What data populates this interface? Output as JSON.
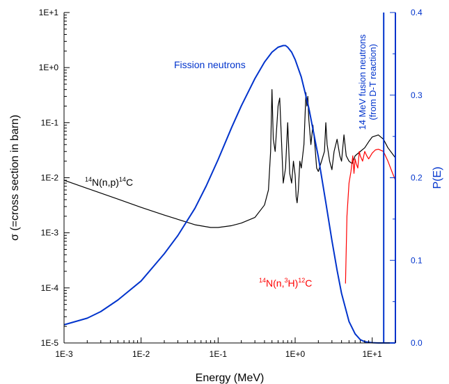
{
  "chart_data": {
    "type": "line",
    "xlabel": "Energy (MeV)",
    "ylabel_left": "σ (=cross section in barn)",
    "ylabel_right": "P(E)",
    "x_scale": "log",
    "xlim": [
      0.001,
      20
    ],
    "y_left_scale": "log",
    "y_left_lim": [
      1e-05,
      10
    ],
    "y_right_lim": [
      0,
      0.4
    ],
    "x_ticks": [
      {
        "value": 0.001,
        "label": "1E-3"
      },
      {
        "value": 0.01,
        "label": "1E-2"
      },
      {
        "value": 0.1,
        "label": "1E-1"
      },
      {
        "value": 1,
        "label": "1E+0"
      },
      {
        "value": 10,
        "label": "1E+1"
      }
    ],
    "y_left_ticks": [
      {
        "value": 10,
        "label": "1E+1"
      },
      {
        "value": 1,
        "label": "1E+0"
      },
      {
        "value": 0.1,
        "label": "1E-1"
      },
      {
        "value": 0.01,
        "label": "1E-2"
      },
      {
        "value": 0.001,
        "label": "1E-3"
      },
      {
        "value": 0.0001,
        "label": "1E-4"
      },
      {
        "value": 1e-05,
        "label": "1E-5"
      }
    ],
    "y_right_ticks": [
      {
        "value": 0.4,
        "label": "0.4"
      },
      {
        "value": 0.3,
        "label": "0.3"
      },
      {
        "value": 0.2,
        "label": "0.2"
      },
      {
        "value": 0.1,
        "label": "0.1"
      },
      {
        "value": 0.0,
        "label": "0.0"
      }
    ],
    "series": [
      {
        "name": "14N(n,p)14C",
        "axis": "left",
        "color": "#000000",
        "x": [
          0.001,
          0.002,
          0.005,
          0.01,
          0.02,
          0.05,
          0.08,
          0.1,
          0.15,
          0.2,
          0.3,
          0.4,
          0.45,
          0.48,
          0.5,
          0.52,
          0.55,
          0.6,
          0.63,
          0.66,
          0.7,
          0.75,
          0.8,
          0.85,
          0.9,
          0.95,
          1.0,
          1.03,
          1.06,
          1.1,
          1.15,
          1.2,
          1.3,
          1.38,
          1.42,
          1.46,
          1.5,
          1.6,
          1.7,
          1.8,
          1.9,
          2.0,
          2.2,
          2.4,
          2.5,
          2.6,
          2.8,
          3.0,
          3.2,
          3.5,
          3.8,
          4.0,
          4.3,
          4.6,
          5.0,
          5.5,
          6.0,
          7.0,
          8.0,
          9.0,
          10.0,
          12.0,
          14.0,
          16.0,
          20.0
        ],
        "y": [
          0.009,
          0.0064,
          0.0041,
          0.0029,
          0.0021,
          0.0014,
          0.00125,
          0.00125,
          0.00135,
          0.0015,
          0.0019,
          0.0032,
          0.006,
          0.03,
          0.4,
          0.05,
          0.03,
          0.2,
          0.28,
          0.06,
          0.008,
          0.015,
          0.1,
          0.012,
          0.008,
          0.02,
          0.011,
          0.0045,
          0.0035,
          0.006,
          0.02,
          0.015,
          0.04,
          0.35,
          0.2,
          0.3,
          0.12,
          0.04,
          0.09,
          0.04,
          0.015,
          0.013,
          0.02,
          0.03,
          0.1,
          0.04,
          0.02,
          0.014,
          0.03,
          0.05,
          0.025,
          0.02,
          0.06,
          0.025,
          0.02,
          0.018,
          0.025,
          0.03,
          0.035,
          0.045,
          0.055,
          0.06,
          0.05,
          0.035,
          0.023
        ]
      },
      {
        "name": "14N(n,3H)12C",
        "axis": "left",
        "color": "#ff0000",
        "x": [
          4.5,
          4.7,
          5.0,
          5.3,
          5.6,
          5.8,
          6.0,
          6.2,
          6.5,
          6.8,
          7.0,
          7.5,
          8.0,
          8.5,
          9.0,
          10.0,
          11.0,
          12.0,
          14.0,
          16.0,
          18.0,
          20.0
        ],
        "y": [
          0.00012,
          0.002,
          0.008,
          0.013,
          0.025,
          0.012,
          0.022,
          0.018,
          0.015,
          0.03,
          0.025,
          0.02,
          0.03,
          0.025,
          0.022,
          0.028,
          0.032,
          0.033,
          0.03,
          0.02,
          0.013,
          0.009
        ]
      },
      {
        "name": "Fission neutrons",
        "axis": "right",
        "color": "#0033cc",
        "x": [
          0.001,
          0.002,
          0.003,
          0.005,
          0.01,
          0.02,
          0.03,
          0.05,
          0.07,
          0.1,
          0.15,
          0.2,
          0.3,
          0.4,
          0.5,
          0.6,
          0.7,
          0.75,
          0.8,
          0.9,
          1.0,
          1.2,
          1.5,
          2.0,
          2.5,
          3.0,
          3.5,
          4.0,
          5.0,
          6.0,
          7.0,
          8.0,
          10.0,
          12.0,
          14.0,
          20.0
        ],
        "y": [
          0.022,
          0.03,
          0.038,
          0.052,
          0.075,
          0.108,
          0.13,
          0.163,
          0.19,
          0.222,
          0.261,
          0.287,
          0.32,
          0.34,
          0.352,
          0.358,
          0.36,
          0.36,
          0.358,
          0.352,
          0.343,
          0.322,
          0.285,
          0.225,
          0.17,
          0.124,
          0.088,
          0.06,
          0.026,
          0.011,
          0.004,
          0.0015,
          0.0003,
          0.0,
          0.0,
          0.0
        ]
      }
    ],
    "vertical_lines": [
      {
        "x": 14.1,
        "color": "#0033cc"
      },
      {
        "x": 20.0,
        "color": "#0033cc"
      }
    ],
    "annotations": [
      {
        "id": "fission",
        "text": "Fission neutrons",
        "color": "#0033cc"
      },
      {
        "id": "fusion_line1",
        "text": "14 MeV fusion neutrons",
        "color": "#0033cc"
      },
      {
        "id": "fusion_line2",
        "text": "(from D-T reaction)",
        "color": "#0033cc"
      }
    ],
    "label_np": {
      "pre": "14",
      "mid1": "N(n,p)",
      "sup2": "14",
      "post": "C",
      "color": "#000000"
    },
    "label_n3h": {
      "pre": "14",
      "mid1": "N(n,",
      "sup2": "3",
      "mid2": "H)",
      "sup3": "12",
      "post": "C",
      "color": "#ff0000"
    }
  }
}
